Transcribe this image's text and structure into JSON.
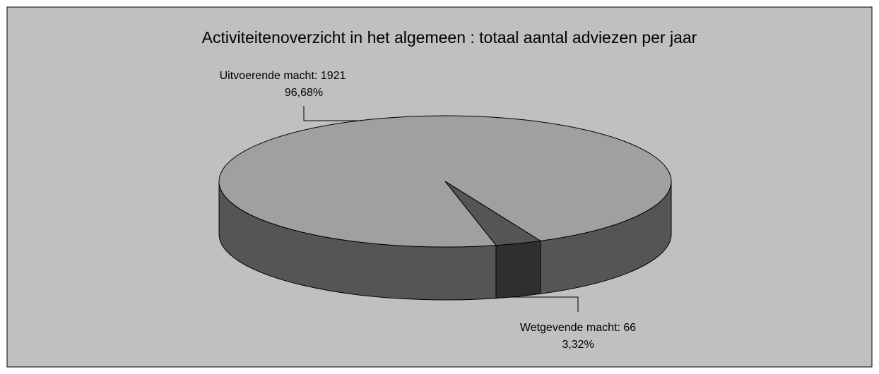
{
  "chart_data": {
    "type": "pie3d",
    "title": "Activiteitenoverzicht in het algemeen : totaal aantal adviezen per jaar",
    "values": [
      1921,
      66
    ],
    "value_labels": [
      "Uitvoerende macht: 1921",
      "Wetgevende macht: 66"
    ],
    "percentages": [
      96.68,
      3.32
    ],
    "percentage_labels": [
      "96,68%",
      "3,32%"
    ],
    "colors": [
      "#a0a0a0",
      "#555555"
    ],
    "side_colors": [
      "#555555",
      "#2f2f2f"
    ]
  }
}
